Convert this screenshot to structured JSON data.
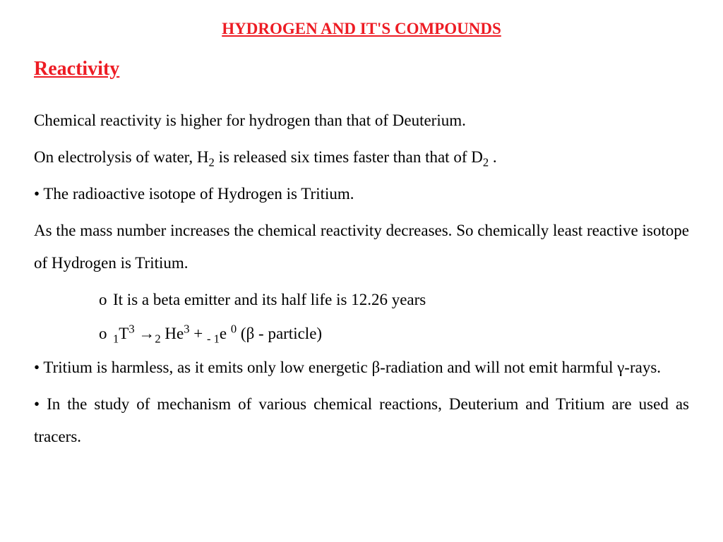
{
  "colors": {
    "heading": "#ed1c24",
    "body": "#000000",
    "background": "#ffffff"
  },
  "title": "HYDROGEN AND IT'S COMPOUNDS",
  "heading": "Reactivity",
  "p1": "Chemical reactivity is higher for hydrogen than that of Deuterium.",
  "p2_a": " On electrolysis of water, H",
  "p2_b": " is released six times faster than that of D",
  "p2_c": " .",
  "b1": "• The radioactive isotope of Hydrogen is Tritium.",
  "p3": "As the mass number increases the chemical reactivity decreases. So chemically least reactive isotope of Hydrogen is Tritium.",
  "sb1": "It is a beta emitter and its half life is 12.26 years",
  "sb2_a": "T",
  "sb2_b": " →",
  "sb2_c": " He",
  "sb2_d": " + ",
  "sb2_e": "e ",
  "sb2_f": " (β - particle)",
  "b2": "• Tritium is harmless, as it emits only low energetic β-radiation and will not emit harmful γ-rays.",
  "b3": "• In the study of mechanism of various chemical reactions, Deuterium and Tritium are used as tracers.",
  "nums": {
    "two": "2",
    "one": "1",
    "three": "3",
    "minus_one": "- 1",
    "zero": "0"
  },
  "circle": "o "
}
